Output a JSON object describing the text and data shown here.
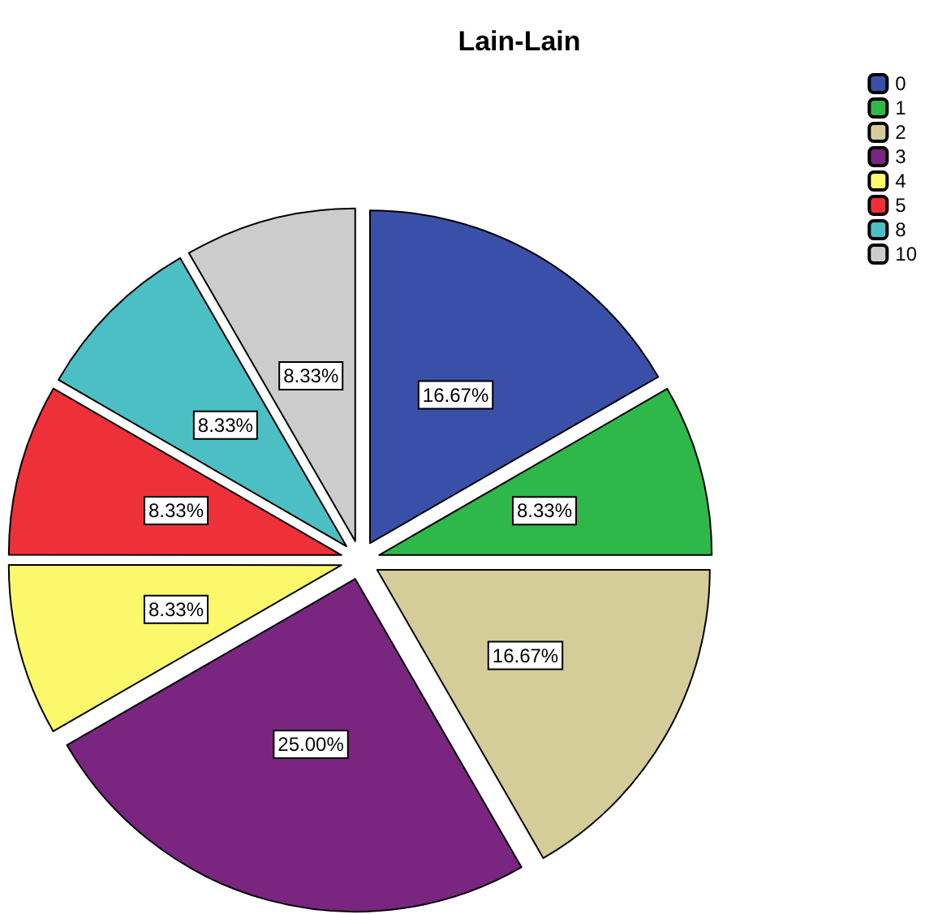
{
  "chart_data": {
    "type": "pie",
    "title": "Lain-Lain",
    "categories": [
      "0",
      "1",
      "2",
      "3",
      "4",
      "5",
      "8",
      "10"
    ],
    "values": [
      16.67,
      8.33,
      16.67,
      25.0,
      8.33,
      8.33,
      8.33,
      8.33
    ],
    "value_labels": [
      "16.67%",
      "8.33%",
      "16.67%",
      "25.00%",
      "8.33%",
      "8.33%",
      "8.33%",
      "8.33%"
    ],
    "colors": [
      "#3a50a8",
      "#2fb84a",
      "#d4cd9a",
      "#7a2580",
      "#fbf86c",
      "#ee3039",
      "#4bbfc4",
      "#cccccc"
    ],
    "legend": "top right"
  }
}
